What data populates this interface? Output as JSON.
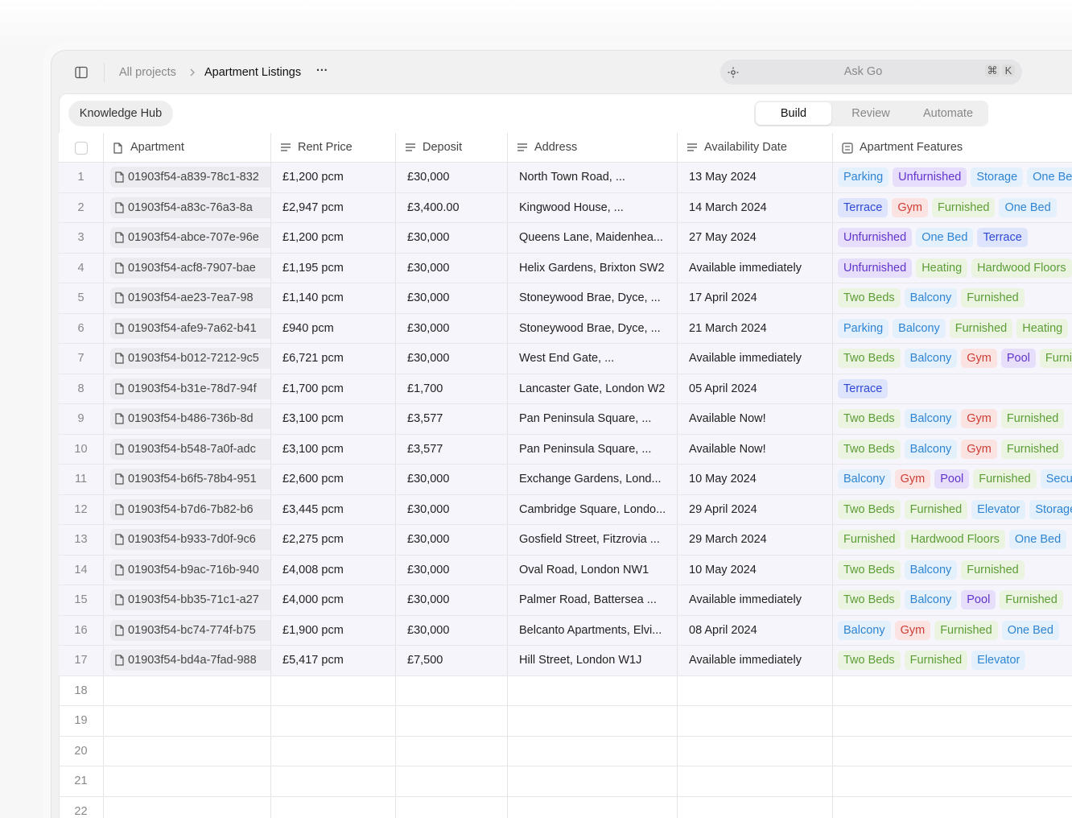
{
  "header": {
    "breadcrumb": [
      "All projects",
      "Apartment Listings"
    ],
    "more": "···",
    "search": {
      "placeholder": "Ask Go",
      "keys": [
        "⌘",
        "K"
      ]
    }
  },
  "toolbar": {
    "hub": "Knowledge Hub",
    "tabs": [
      "Build",
      "Review",
      "Automate"
    ],
    "active_tab": 0
  },
  "table": {
    "columns": [
      "Apartment",
      "Rent Price",
      "Deposit",
      "Address",
      "Availability Date",
      "Apartment Features"
    ],
    "rows": [
      {
        "num": 1,
        "cells": [
          "01903f54-a839-78c1-832",
          "£1,200 pcm",
          "£30,000",
          "North Town Road, ...",
          "13 May 2024"
        ],
        "features": [
          {
            "text": "Parking",
            "color": "blue"
          },
          {
            "text": "Unfurnished",
            "color": "purple"
          },
          {
            "text": "Storage",
            "color": "blue"
          },
          {
            "text": "One Bed",
            "color": "blue"
          }
        ]
      },
      {
        "num": 2,
        "cells": [
          "01903f54-a83c-76a3-8a",
          "£2,947 pcm",
          "£3,400.00",
          "Kingwood House, ...",
          "14 March 2024"
        ],
        "features": [
          {
            "text": "Terrace",
            "color": "indigo"
          },
          {
            "text": "Gym",
            "color": "red"
          },
          {
            "text": "Furnished",
            "color": "green"
          },
          {
            "text": "One Bed",
            "color": "blue"
          }
        ]
      },
      {
        "num": 3,
        "cells": [
          "01903f54-abce-707e-96e",
          "£1,200 pcm",
          "£30,000",
          "Queens Lane, Maidenhea...",
          "27 May 2024"
        ],
        "features": [
          {
            "text": "Unfurnished",
            "color": "purple"
          },
          {
            "text": "One Bed",
            "color": "blue"
          },
          {
            "text": "Terrace",
            "color": "indigo"
          }
        ]
      },
      {
        "num": 4,
        "cells": [
          "01903f54-acf8-7907-bae",
          "£1,195 pcm",
          "£30,000",
          "Helix Gardens, Brixton SW2",
          "Available immediately"
        ],
        "features": [
          {
            "text": "Unfurnished",
            "color": "purple"
          },
          {
            "text": "Heating",
            "color": "green"
          },
          {
            "text": "Hardwood Floors",
            "color": "green"
          }
        ]
      },
      {
        "num": 5,
        "cells": [
          "01903f54-ae23-7ea7-98",
          "£1,140 pcm",
          "£30,000",
          "Stoneywood Brae, Dyce, ...",
          "17 April 2024"
        ],
        "features": [
          {
            "text": "Two Beds",
            "color": "green"
          },
          {
            "text": "Balcony",
            "color": "blue"
          },
          {
            "text": "Furnished",
            "color": "green"
          }
        ]
      },
      {
        "num": 6,
        "cells": [
          "01903f54-afe9-7a62-b41",
          "£940 pcm",
          "£30,000",
          "Stoneywood Brae, Dyce, ...",
          "21 March 2024"
        ],
        "features": [
          {
            "text": "Parking",
            "color": "blue"
          },
          {
            "text": "Balcony",
            "color": "blue"
          },
          {
            "text": "Furnished",
            "color": "green"
          },
          {
            "text": "Heating",
            "color": "green"
          }
        ]
      },
      {
        "num": 7,
        "cells": [
          "01903f54-b012-7212-9c5",
          "£6,721 pcm",
          "£30,000",
          "West End Gate, ...",
          "Available immediately"
        ],
        "features": [
          {
            "text": "Two Beds",
            "color": "green"
          },
          {
            "text": "Balcony",
            "color": "blue"
          },
          {
            "text": "Gym",
            "color": "red"
          },
          {
            "text": "Pool",
            "color": "purple"
          },
          {
            "text": "Furnished",
            "color": "green"
          }
        ]
      },
      {
        "num": 8,
        "cells": [
          "01903f54-b31e-78d7-94f",
          "£1,700 pcm",
          "£1,700",
          "Lancaster Gate, London W2",
          "05 April 2024"
        ],
        "features": [
          {
            "text": "Terrace",
            "color": "indigo"
          }
        ]
      },
      {
        "num": 9,
        "cells": [
          "01903f54-b486-736b-8d",
          "£3,100 pcm",
          "£3,577",
          "Pan Peninsula Square, ...",
          "Available Now!"
        ],
        "features": [
          {
            "text": "Two Beds",
            "color": "green"
          },
          {
            "text": "Balcony",
            "color": "blue"
          },
          {
            "text": "Gym",
            "color": "red"
          },
          {
            "text": "Furnished",
            "color": "green"
          }
        ]
      },
      {
        "num": 10,
        "cells": [
          "01903f54-b548-7a0f-adc",
          "£3,100 pcm",
          "£3,577",
          "Pan Peninsula Square, ...",
          "Available Now!"
        ],
        "features": [
          {
            "text": "Two Beds",
            "color": "green"
          },
          {
            "text": "Balcony",
            "color": "blue"
          },
          {
            "text": "Gym",
            "color": "red"
          },
          {
            "text": "Furnished",
            "color": "green"
          }
        ]
      },
      {
        "num": 11,
        "cells": [
          "01903f54-b6f5-78b4-951",
          "£2,600 pcm",
          "£30,000",
          "Exchange Gardens, Lond...",
          "10 May 2024"
        ],
        "features": [
          {
            "text": "Balcony",
            "color": "blue"
          },
          {
            "text": "Gym",
            "color": "red"
          },
          {
            "text": "Pool",
            "color": "purple"
          },
          {
            "text": "Furnished",
            "color": "green"
          },
          {
            "text": "Security",
            "color": "blue"
          }
        ]
      },
      {
        "num": 12,
        "cells": [
          "01903f54-b7d6-7b82-b6",
          "£3,445 pcm",
          "£30,000",
          "Cambridge Square, Londo...",
          "29 April 2024"
        ],
        "features": [
          {
            "text": "Two Beds",
            "color": "green"
          },
          {
            "text": "Furnished",
            "color": "green"
          },
          {
            "text": "Elevator",
            "color": "blue"
          },
          {
            "text": "Storage",
            "color": "blue"
          }
        ]
      },
      {
        "num": 13,
        "cells": [
          "01903f54-b933-7d0f-9c6",
          "£2,275 pcm",
          "£30,000",
          "Gosfield Street, Fitzrovia ...",
          "29 March 2024"
        ],
        "features": [
          {
            "text": "Furnished",
            "color": "green"
          },
          {
            "text": "Hardwood Floors",
            "color": "green"
          },
          {
            "text": "One Bed",
            "color": "blue"
          }
        ]
      },
      {
        "num": 14,
        "cells": [
          "01903f54-b9ac-716b-940",
          "£4,008 pcm",
          "£30,000",
          "Oval Road, London NW1",
          "10 May 2024"
        ],
        "features": [
          {
            "text": "Two Beds",
            "color": "green"
          },
          {
            "text": "Balcony",
            "color": "blue"
          },
          {
            "text": "Furnished",
            "color": "green"
          }
        ]
      },
      {
        "num": 15,
        "cells": [
          "01903f54-bb35-71c1-a27",
          "£4,000 pcm",
          "£30,000",
          "Palmer Road, Battersea ...",
          "Available immediately"
        ],
        "features": [
          {
            "text": "Two Beds",
            "color": "green"
          },
          {
            "text": "Balcony",
            "color": "blue"
          },
          {
            "text": "Pool",
            "color": "purple"
          },
          {
            "text": "Furnished",
            "color": "green"
          }
        ]
      },
      {
        "num": 16,
        "cells": [
          "01903f54-bc74-774f-b75",
          "£1,900 pcm",
          "£30,000",
          "Belcanto Apartments, Elvi...",
          "08 April 2024"
        ],
        "features": [
          {
            "text": "Balcony",
            "color": "blue"
          },
          {
            "text": "Gym",
            "color": "red"
          },
          {
            "text": "Furnished",
            "color": "green"
          },
          {
            "text": "One Bed",
            "color": "blue"
          }
        ]
      },
      {
        "num": 17,
        "cells": [
          "01903f54-bd4a-7fad-988",
          "£5,417 pcm",
          "£7,500",
          "Hill Street, London W1J",
          "Available immediately"
        ],
        "features": [
          {
            "text": "Two Beds",
            "color": "green"
          },
          {
            "text": "Furnished",
            "color": "green"
          },
          {
            "text": "Elevator",
            "color": "blue"
          }
        ]
      },
      {
        "num": 18
      },
      {
        "num": 19
      },
      {
        "num": 20
      },
      {
        "num": 21
      },
      {
        "num": 22
      }
    ]
  }
}
